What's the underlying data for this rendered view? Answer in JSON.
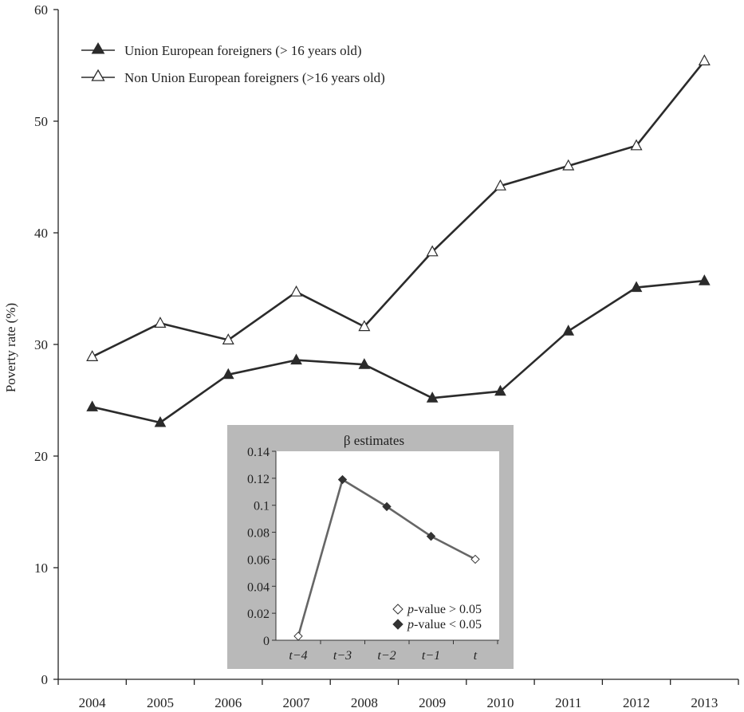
{
  "chart_data": [
    {
      "type": "line",
      "title": "",
      "xlabel": "",
      "ylabel": "Poverty rate (%)",
      "ylim": [
        0,
        60
      ],
      "yticks": [
        0,
        10,
        20,
        30,
        40,
        50,
        60
      ],
      "x": [
        "2004",
        "2005",
        "2006",
        "2007",
        "2008",
        "2009",
        "2010",
        "2011",
        "2012",
        "2013"
      ],
      "legend_position": "top-left",
      "grid": false,
      "series": [
        {
          "name": "Union European foreigners (> 16 years old)",
          "marker": "filled-triangle",
          "color": "#2b2b2b",
          "values": [
            24.4,
            23.0,
            27.3,
            28.6,
            28.2,
            25.2,
            25.8,
            31.2,
            35.1,
            35.7
          ]
        },
        {
          "name": "Non Union European foreigners (>16 years old)",
          "marker": "open-triangle",
          "color": "#2b2b2b",
          "values": [
            28.9,
            31.9,
            30.4,
            34.7,
            31.6,
            38.3,
            44.2,
            46.0,
            47.8,
            55.4
          ]
        }
      ]
    },
    {
      "type": "line",
      "title": "β estimates",
      "xlabel": "",
      "ylabel": "",
      "ylim": [
        0,
        0.14
      ],
      "yticks": [
        "0",
        "0.02",
        "0.04",
        "0.06",
        "0.08",
        "0.1",
        "0.12",
        "0.14"
      ],
      "x": [
        "t−4",
        "t−3",
        "t−2",
        "t−1",
        "t"
      ],
      "values": [
        0.003,
        0.119,
        0.099,
        0.077,
        0.06
      ],
      "significant": [
        false,
        true,
        true,
        true,
        false
      ],
      "line_color": "#666666",
      "background": "#b9b9b9",
      "legend_position": "bottom-right",
      "legend": [
        {
          "symbol": "◇",
          "label_italic": "p",
          "label_rest": "-value > 0.05"
        },
        {
          "symbol": "◆",
          "label_italic": "p",
          "label_rest": "-value < 0.05"
        }
      ]
    }
  ]
}
